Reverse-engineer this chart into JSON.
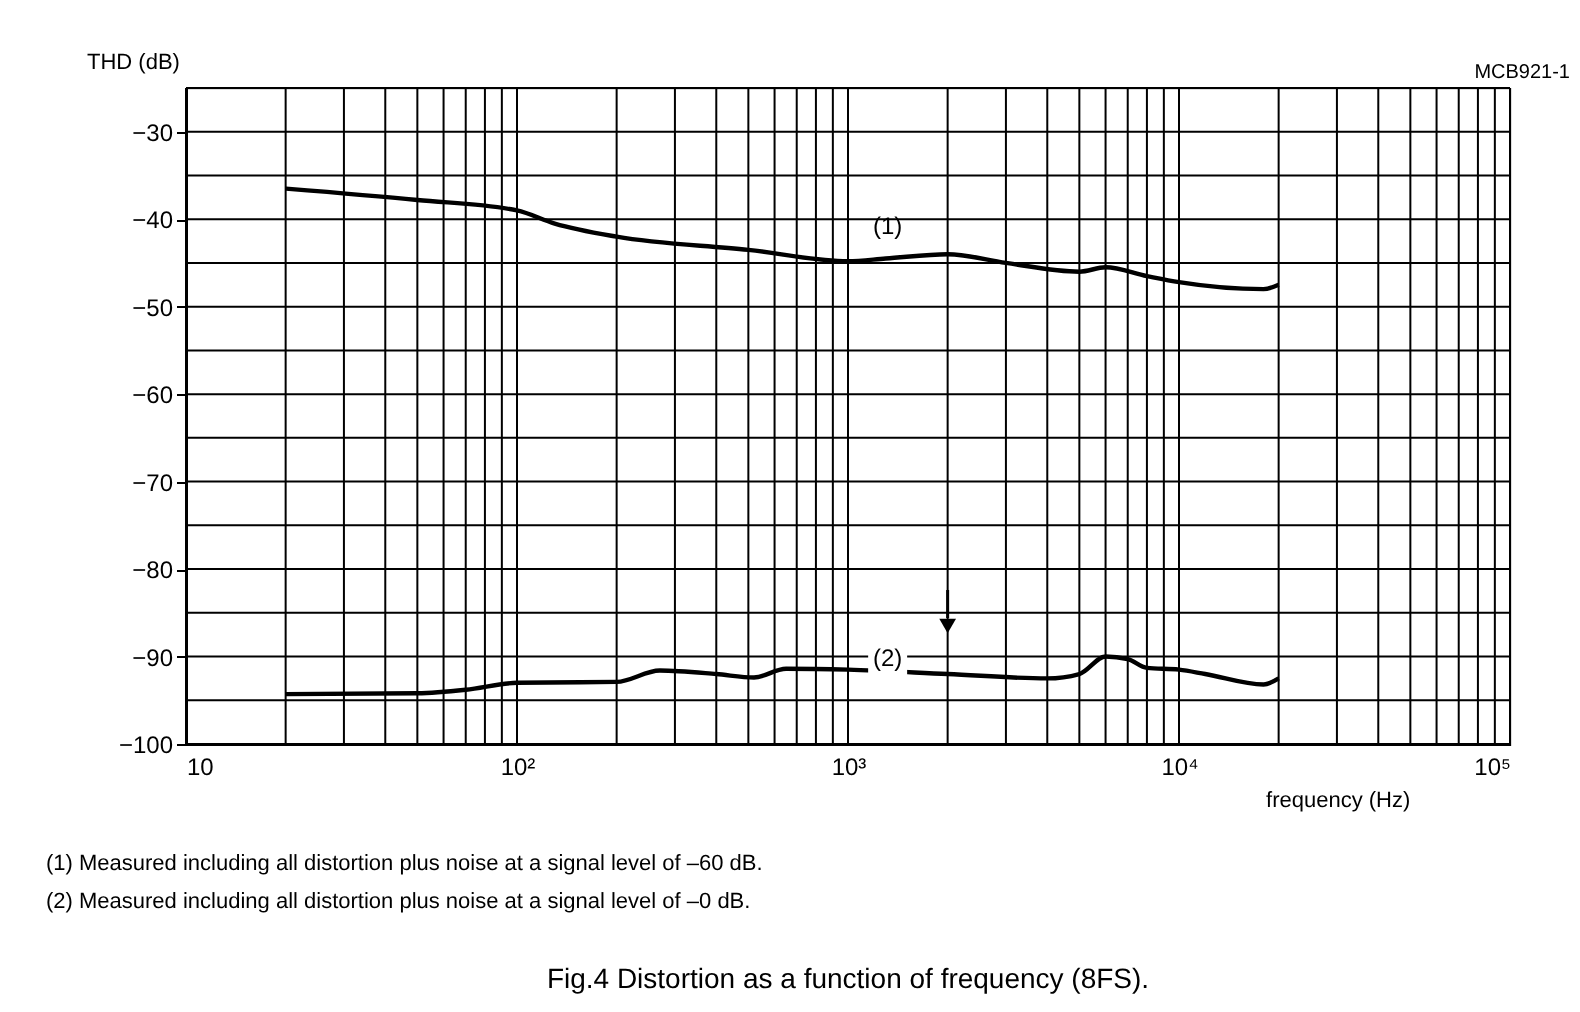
{
  "chart_data": {
    "type": "line",
    "title": "Fig.4  Distortion as a function of frequency (8FS).",
    "xlabel": "frequency (Hz)",
    "ylabel": "THD (dB)",
    "annotations": [
      "MCB921-1",
      "(1)   Measured including all distortion plus noise at a signal level of –60 dB.",
      "(2)   Measured including all distortion plus noise at a signal level of –0 dB."
    ],
    "series": [
      {
        "name": "(1)",
        "color": "#000000",
        "x": [
          20,
          50,
          100,
          130,
          200,
          500,
          1000,
          1300,
          2000,
          3000,
          5000,
          6000,
          8000,
          10000,
          18000,
          20000
        ],
        "values": [
          -36.5,
          -37.8,
          -39,
          -40.5,
          -42,
          -43.5,
          -44.8,
          -44.5,
          -44,
          -45,
          -46,
          -45.5,
          -46.5,
          -47.2,
          -48,
          -47.5
        ]
      },
      {
        "name": "(2)",
        "color": "#000000",
        "x": [
          20,
          50,
          70,
          100,
          200,
          270,
          400,
          520,
          650,
          1000,
          2000,
          4000,
          5000,
          6000,
          7000,
          8000,
          10000,
          12000,
          18000,
          20000
        ],
        "values": [
          -94.3,
          -94.2,
          -93.8,
          -93,
          -92.9,
          -91.6,
          -92,
          -92.4,
          -91.4,
          -91.5,
          -92,
          -92.5,
          -92,
          -90,
          -90.3,
          -91.3,
          -91.5,
          -92,
          -93.2,
          -92.5
        ]
      }
    ],
    "xlim": [
      10,
      100000
    ],
    "ylim": [
      -100,
      -25
    ],
    "log": "x",
    "xticks": [
      10,
      {
        "value": 20,
        "label": null
      },
      {
        "value": 30,
        "label": null
      },
      {
        "value": 40,
        "label": null
      },
      {
        "value": 50,
        "label": null
      },
      {
        "value": 60,
        "label": null
      },
      {
        "value": 70,
        "label": null
      },
      {
        "value": 80,
        "label": null
      },
      {
        "value": 90,
        "label": null
      },
      {
        "value": 100,
        "label": "10²"
      },
      {
        "value": 200,
        "label": null
      },
      {
        "value": 300,
        "label": null
      },
      {
        "value": 400,
        "label": null
      },
      {
        "value": 500,
        "label": null
      },
      {
        "value": 600,
        "label": null
      },
      {
        "value": 700,
        "label": null
      },
      {
        "value": 800,
        "label": null
      },
      {
        "value": 900,
        "label": null
      },
      {
        "value": 1000,
        "label": "10³"
      },
      {
        "value": 2000,
        "label": null
      },
      {
        "value": 3000,
        "label": null
      },
      {
        "value": 4000,
        "label": null
      },
      {
        "value": 5000,
        "label": null
      },
      {
        "value": 6000,
        "label": null
      },
      {
        "value": 7000,
        "label": null
      },
      {
        "value": 8000,
        "label": null
      },
      {
        "value": 9000,
        "label": null
      },
      {
        "value": 10000,
        "label": "10⁴"
      },
      {
        "value": 20000,
        "label": null
      },
      {
        "value": 30000,
        "label": null
      },
      {
        "value": 40000,
        "label": null
      },
      {
        "value": 50000,
        "label": null
      },
      {
        "value": 60000,
        "label": null
      },
      {
        "value": 70000,
        "label": null
      },
      {
        "value": 80000,
        "label": null
      },
      {
        "value": 90000,
        "label": null
      },
      {
        "value": 100000,
        "label": "10⁵"
      }
    ],
    "yticks": [
      {
        "value": -25,
        "label": null
      },
      -30,
      {
        "value": -35,
        "label": null
      },
      -40,
      {
        "value": -45,
        "label": null
      },
      -50,
      {
        "value": -55,
        "label": null
      },
      -60,
      {
        "value": -65,
        "label": null
      },
      -70,
      {
        "value": -75,
        "label": null
      },
      -80,
      {
        "value": -85,
        "label": null
      },
      -90,
      {
        "value": -95,
        "label": null
      },
      -100
    ],
    "grid": true,
    "legend": false,
    "marker": "none",
    "line_style": "solid"
  }
}
